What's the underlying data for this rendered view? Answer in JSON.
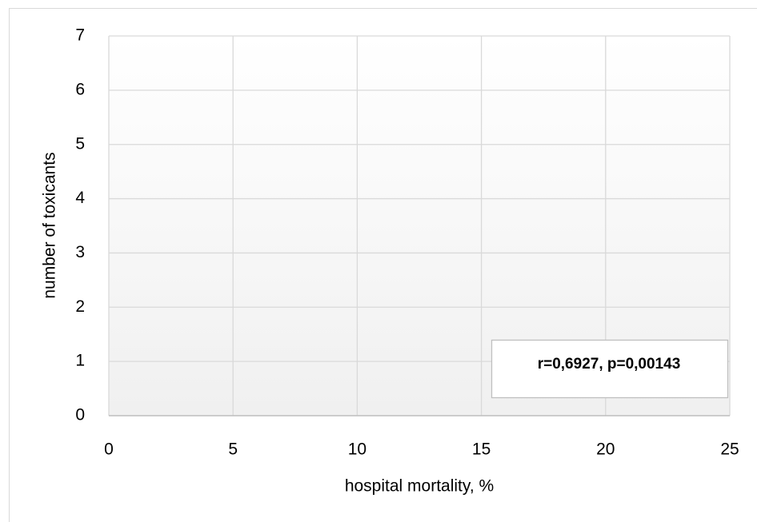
{
  "chart_data": {
    "type": "scatter",
    "x_label": "hospital mortality, %",
    "y_label": "number of toxicants",
    "annotation": "r=0,6927, p=0,00143",
    "xlim": [
      0,
      25
    ],
    "xticks": [
      0,
      5,
      10,
      15,
      20,
      25
    ],
    "ylim": [
      0,
      7
    ],
    "yticks": [
      0,
      1,
      2,
      3,
      4,
      5,
      6,
      7
    ],
    "grid": true
  }
}
